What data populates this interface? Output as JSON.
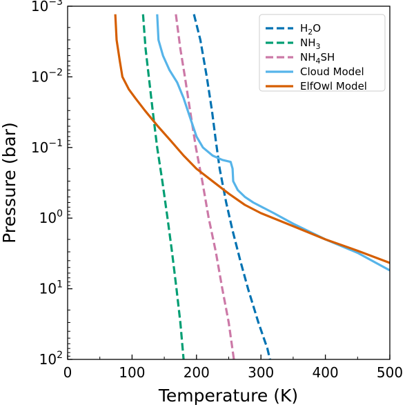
{
  "chart_data": {
    "type": "line",
    "title": "",
    "xlabel": "Temperature (K)",
    "ylabel": "Pressure (bar)",
    "xlim": [
      0,
      500
    ],
    "ylim": [
      0.001,
      100
    ],
    "yscale": "log",
    "y_inverted": true,
    "grid": false,
    "legend_position": "top-right",
    "xticks": [
      {
        "value": 0,
        "label": "0"
      },
      {
        "value": 100,
        "label": "100"
      },
      {
        "value": 200,
        "label": "200"
      },
      {
        "value": 300,
        "label": "300"
      },
      {
        "value": 400,
        "label": "400"
      },
      {
        "value": 500,
        "label": "500"
      }
    ],
    "yticks": [
      {
        "value": 0.001,
        "base": "10",
        "exp": "−3"
      },
      {
        "value": 0.01,
        "base": "10",
        "exp": "−2"
      },
      {
        "value": 0.1,
        "base": "10",
        "exp": "−1"
      },
      {
        "value": 1,
        "base": "10",
        "exp": "0"
      },
      {
        "value": 10,
        "base": "10",
        "exp": "1"
      },
      {
        "value": 100,
        "base": "10",
        "exp": "2"
      }
    ],
    "series": [
      {
        "name": "H2O",
        "label_main": "H",
        "label_sub": "2",
        "label_rest": "O",
        "color": "#0072b2",
        "dash": true,
        "points": [
          [
            196,
            0.0013
          ],
          [
            206,
            0.003
          ],
          [
            216,
            0.01
          ],
          [
            224,
            0.03
          ],
          [
            230,
            0.08
          ],
          [
            236,
            0.2
          ],
          [
            246,
            0.6
          ],
          [
            256,
            1.5
          ],
          [
            268,
            4
          ],
          [
            280,
            10
          ],
          [
            296,
            30
          ],
          [
            310,
            70
          ],
          [
            314,
            100
          ]
        ]
      },
      {
        "name": "NH3",
        "label_main": "NH",
        "label_sub": "3",
        "label_rest": "",
        "color": "#009e73",
        "dash": true,
        "points": [
          [
            117,
            0.0013
          ],
          [
            121,
            0.004
          ],
          [
            126,
            0.01
          ],
          [
            132,
            0.03
          ],
          [
            139,
            0.1
          ],
          [
            147,
            0.3
          ],
          [
            155,
            1
          ],
          [
            162,
            3
          ],
          [
            169,
            10
          ],
          [
            175,
            30
          ],
          [
            180,
            100
          ]
        ]
      },
      {
        "name": "NH4SH",
        "label_main": "NH",
        "label_sub": "4",
        "label_rest": "SH",
        "color": "#cc79a7",
        "dash": true,
        "points": [
          [
            168,
            0.0013
          ],
          [
            175,
            0.004
          ],
          [
            182,
            0.01
          ],
          [
            190,
            0.03
          ],
          [
            199,
            0.1
          ],
          [
            209,
            0.3
          ],
          [
            219,
            1
          ],
          [
            230,
            3
          ],
          [
            240,
            10
          ],
          [
            250,
            30
          ],
          [
            258,
            100
          ]
        ]
      },
      {
        "name": "Cloud Model",
        "color": "#56b4e9",
        "dash": false,
        "points": [
          [
            139,
            0.0013
          ],
          [
            141,
            0.003
          ],
          [
            148,
            0.005
          ],
          [
            158,
            0.008
          ],
          [
            170,
            0.012
          ],
          [
            180,
            0.02
          ],
          [
            191,
            0.04
          ],
          [
            200,
            0.07
          ],
          [
            210,
            0.1
          ],
          [
            225,
            0.13
          ],
          [
            240,
            0.15
          ],
          [
            253,
            0.16
          ],
          [
            256,
            0.2
          ],
          [
            257,
            0.3
          ],
          [
            264,
            0.4
          ],
          [
            275,
            0.5
          ],
          [
            288,
            0.6
          ],
          [
            320,
            0.85
          ],
          [
            350,
            1.2
          ],
          [
            400,
            2
          ],
          [
            450,
            3.1
          ],
          [
            500,
            5.5
          ]
        ]
      },
      {
        "name": "ElfOwl Model",
        "color": "#d55e00",
        "dash": false,
        "points": [
          [
            74,
            0.0013
          ],
          [
            76,
            0.003
          ],
          [
            81,
            0.006
          ],
          [
            85,
            0.01
          ],
          [
            95,
            0.015
          ],
          [
            105,
            0.02
          ],
          [
            120,
            0.03
          ],
          [
            140,
            0.05
          ],
          [
            160,
            0.08
          ],
          [
            180,
            0.13
          ],
          [
            200,
            0.2
          ],
          [
            225,
            0.3
          ],
          [
            250,
            0.45
          ],
          [
            275,
            0.65
          ],
          [
            300,
            0.85
          ],
          [
            350,
            1.3
          ],
          [
            400,
            2
          ],
          [
            450,
            2.9
          ],
          [
            500,
            4.3
          ]
        ]
      }
    ]
  }
}
